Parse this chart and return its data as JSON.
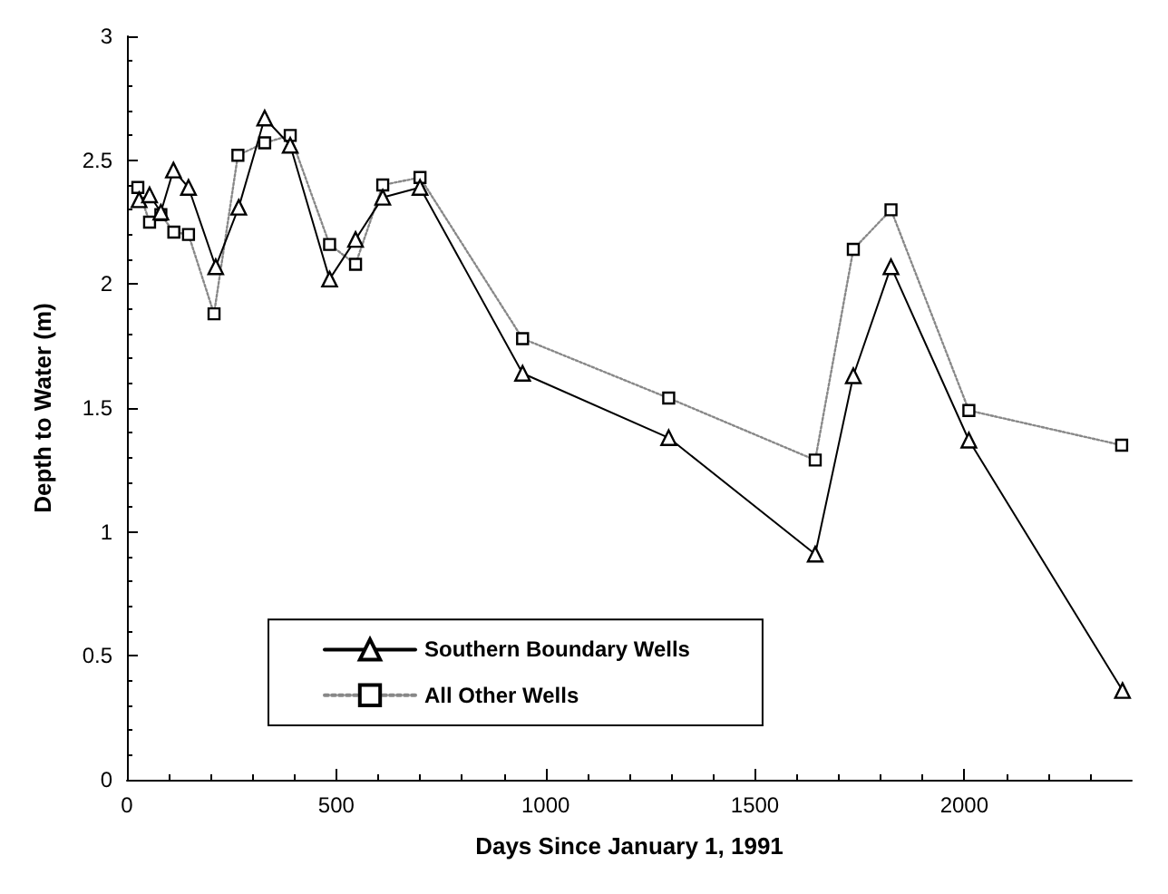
{
  "chart_data": {
    "type": "line",
    "xlabel": "Days Since January 1, 1991",
    "ylabel": "Depth to Water (m)",
    "xlim": [
      0,
      2400
    ],
    "xticks": [
      0,
      500,
      1000,
      1500,
      2000
    ],
    "ylim": [
      0,
      3
    ],
    "yticks": [
      0,
      0.5,
      1,
      1.5,
      2,
      2.5,
      3
    ],
    "grid": false,
    "legend": "bottom left",
    "series": [
      {
        "name": "Southern Boundary Wells",
        "color": "#000000",
        "marker": "triangle",
        "line_style": "solid",
        "x": [
          29,
          54,
          81,
          111,
          147,
          212,
          267,
          329,
          390,
          484,
          546,
          611,
          700,
          945,
          1294,
          1644,
          1735,
          1825,
          2011,
          2378
        ],
        "values": [
          2.34,
          2.36,
          2.29,
          2.46,
          2.39,
          2.07,
          2.31,
          2.67,
          2.56,
          2.02,
          2.18,
          2.35,
          2.39,
          1.64,
          1.38,
          0.91,
          1.63,
          2.07,
          1.37,
          0.36
        ]
      },
      {
        "name": "All Other Wells",
        "color": "#000000",
        "marker": "square",
        "line_style": "dotted",
        "x": [
          26,
          54,
          81,
          112,
          147,
          208,
          265,
          329,
          390,
          484,
          546,
          611,
          700,
          945,
          1294,
          1644,
          1735,
          1825,
          2011,
          2376
        ],
        "values": [
          2.39,
          2.25,
          2.28,
          2.21,
          2.2,
          1.88,
          2.52,
          2.57,
          2.6,
          2.16,
          2.08,
          2.4,
          2.43,
          1.78,
          1.54,
          1.29,
          2.14,
          2.3,
          1.49,
          1.35
        ]
      }
    ]
  }
}
